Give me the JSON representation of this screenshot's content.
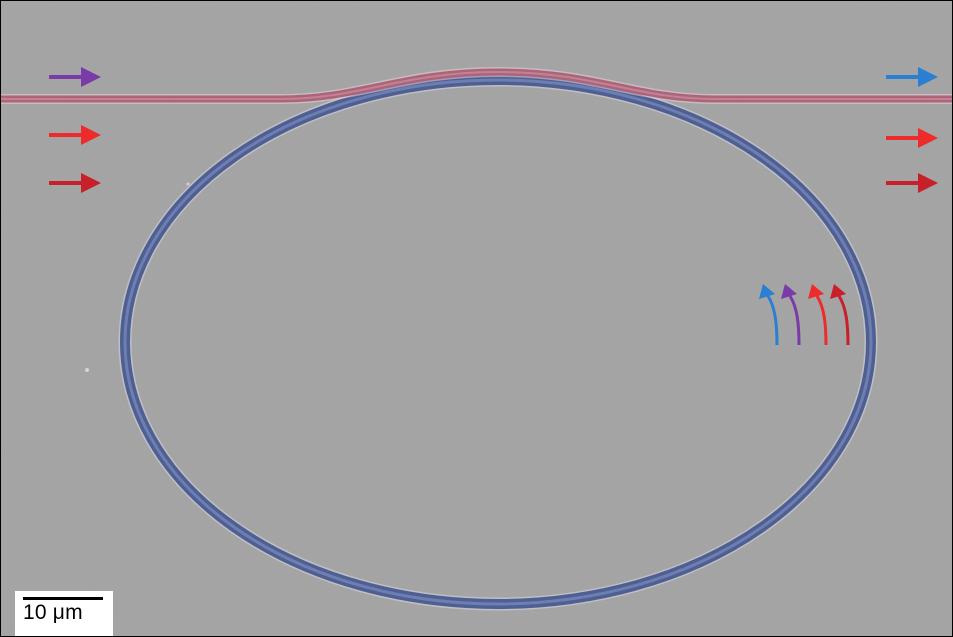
{
  "scale_bar": {
    "label": "10 μm",
    "length_um": 10
  },
  "colors": {
    "background": "#a2a2a2",
    "bus_waveguide": "#b06a7e",
    "ring_resonator": "#5a6a9c",
    "arrow_purple": "#7a3aa8",
    "arrow_blue": "#2a7fd0",
    "arrow_red": "#ee2b2b",
    "arrow_dark_red": "#c8202a"
  },
  "arrows": {
    "input": [
      "purple",
      "red",
      "dark-red"
    ],
    "output": [
      "blue",
      "red",
      "dark-red"
    ],
    "circulating": [
      "blue",
      "purple",
      "red",
      "dark-red"
    ]
  }
}
